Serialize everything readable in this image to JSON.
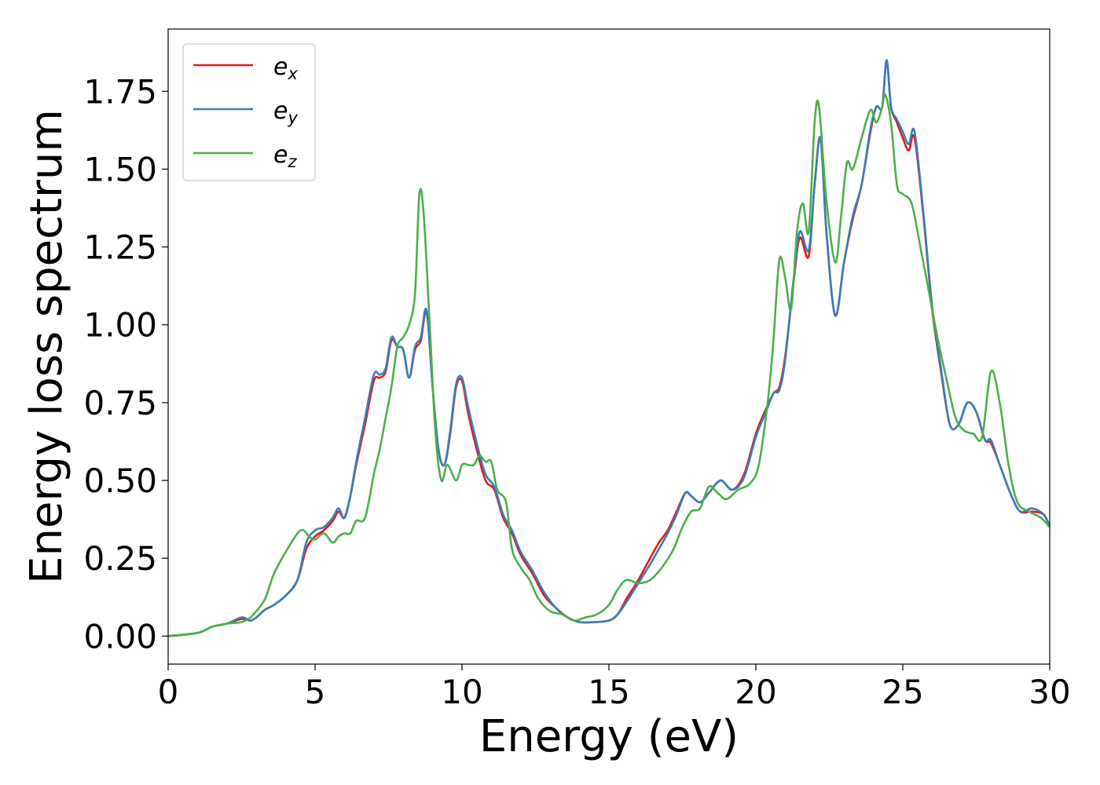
{
  "chart_data": {
    "type": "line",
    "title": "",
    "xlabel": "Energy (eV)",
    "ylabel": "Energy loss spectrum",
    "xlim": [
      0,
      30
    ],
    "ylim": [
      -0.09,
      1.95
    ],
    "x_ticks": [
      0,
      5,
      10,
      15,
      20,
      25,
      30
    ],
    "y_ticks": [
      0.0,
      0.25,
      0.5,
      0.75,
      1.0,
      1.25,
      1.5,
      1.75
    ],
    "y_tick_labels": [
      "0.00",
      "0.25",
      "0.50",
      "0.75",
      "1.00",
      "1.25",
      "1.50",
      "1.75"
    ],
    "x_tick_labels": [
      "0",
      "5",
      "10",
      "15",
      "20",
      "25",
      "30"
    ],
    "grid": false,
    "legend_position": "top-left",
    "series": [
      {
        "name": "e",
        "subscript": "x",
        "color": "#e41a1c",
        "x": [
          0,
          1,
          1.5,
          2,
          2.5,
          2.8,
          3,
          3.3,
          3.6,
          4,
          4.4,
          4.7,
          5,
          5.3,
          5.6,
          5.8,
          6,
          6.2,
          6.4,
          6.7,
          7,
          7.2,
          7.4,
          7.6,
          7.8,
          8.0,
          8.2,
          8.4,
          8.6,
          8.75,
          8.85,
          9.0,
          9.2,
          9.4,
          9.6,
          9.8,
          10.0,
          10.2,
          10.5,
          10.8,
          11.1,
          11.4,
          11.7,
          12.0,
          12.4,
          12.8,
          13.2,
          13.6,
          14.0,
          14.5,
          15.0,
          15.3,
          15.6,
          16,
          16.4,
          16.7,
          17,
          17.3,
          17.6,
          17.8,
          18.1,
          18.4,
          18.8,
          19.2,
          19.6,
          20.0,
          20.3,
          20.6,
          20.8,
          21.0,
          21.3,
          21.5,
          21.8,
          22.0,
          22.2,
          22.4,
          22.7,
          23.0,
          23.3,
          23.6,
          23.9,
          24.1,
          24.3,
          24.45,
          24.6,
          24.8,
          25.0,
          25.2,
          25.4,
          25.7,
          26.0,
          26.3,
          26.6,
          26.9,
          27.2,
          27.5,
          27.8,
          28.0,
          28.3,
          28.7,
          29.0,
          29.4,
          29.8,
          30
        ],
        "y": [
          0,
          0.01,
          0.03,
          0.04,
          0.055,
          0.05,
          0.06,
          0.085,
          0.1,
          0.13,
          0.18,
          0.28,
          0.32,
          0.34,
          0.37,
          0.4,
          0.38,
          0.45,
          0.55,
          0.68,
          0.82,
          0.83,
          0.85,
          0.95,
          0.93,
          0.92,
          0.83,
          0.92,
          0.95,
          1.04,
          1.0,
          0.8,
          0.6,
          0.55,
          0.65,
          0.8,
          0.82,
          0.72,
          0.6,
          0.5,
          0.47,
          0.38,
          0.33,
          0.26,
          0.2,
          0.13,
          0.09,
          0.06,
          0.045,
          0.045,
          0.05,
          0.07,
          0.12,
          0.18,
          0.25,
          0.3,
          0.34,
          0.4,
          0.46,
          0.45,
          0.43,
          0.46,
          0.5,
          0.47,
          0.52,
          0.65,
          0.72,
          0.78,
          0.8,
          0.9,
          1.15,
          1.28,
          1.22,
          1.45,
          1.6,
          1.3,
          1.03,
          1.2,
          1.34,
          1.45,
          1.62,
          1.7,
          1.7,
          1.85,
          1.7,
          1.65,
          1.6,
          1.56,
          1.6,
          1.35,
          1.05,
          0.85,
          0.68,
          0.68,
          0.75,
          0.72,
          0.63,
          0.62,
          0.55,
          0.45,
          0.4,
          0.4,
          0.39,
          0.35
        ]
      },
      {
        "name": "e",
        "subscript": "y",
        "color": "#377eb8",
        "x": [
          0,
          1,
          1.5,
          2,
          2.5,
          2.8,
          3,
          3.3,
          3.6,
          4,
          4.4,
          4.7,
          5,
          5.3,
          5.6,
          5.8,
          6,
          6.2,
          6.4,
          6.7,
          7,
          7.2,
          7.4,
          7.6,
          7.8,
          8.0,
          8.2,
          8.4,
          8.6,
          8.75,
          8.85,
          9.0,
          9.2,
          9.4,
          9.6,
          9.8,
          10.0,
          10.2,
          10.5,
          10.8,
          11.1,
          11.4,
          11.7,
          12.0,
          12.4,
          12.8,
          13.2,
          13.6,
          14.0,
          14.5,
          15.0,
          15.3,
          15.6,
          16,
          16.4,
          16.7,
          17,
          17.3,
          17.6,
          17.8,
          18.1,
          18.4,
          18.8,
          19.2,
          19.6,
          20.0,
          20.3,
          20.6,
          20.8,
          21.0,
          21.3,
          21.5,
          21.8,
          22.0,
          22.2,
          22.4,
          22.7,
          23.0,
          23.3,
          23.6,
          23.9,
          24.1,
          24.3,
          24.45,
          24.6,
          24.8,
          25.0,
          25.2,
          25.4,
          25.7,
          26.0,
          26.3,
          26.6,
          26.9,
          27.2,
          27.5,
          27.8,
          28.0,
          28.3,
          28.7,
          29.0,
          29.4,
          29.8,
          30
        ],
        "y": [
          0,
          0.01,
          0.03,
          0.04,
          0.06,
          0.05,
          0.06,
          0.085,
          0.1,
          0.13,
          0.18,
          0.3,
          0.34,
          0.35,
          0.38,
          0.41,
          0.38,
          0.45,
          0.56,
          0.7,
          0.84,
          0.84,
          0.86,
          0.96,
          0.93,
          0.92,
          0.83,
          0.93,
          0.96,
          1.05,
          1.0,
          0.8,
          0.6,
          0.55,
          0.66,
          0.81,
          0.83,
          0.74,
          0.62,
          0.52,
          0.48,
          0.39,
          0.34,
          0.27,
          0.21,
          0.14,
          0.09,
          0.06,
          0.045,
          0.045,
          0.05,
          0.07,
          0.11,
          0.17,
          0.23,
          0.28,
          0.33,
          0.39,
          0.46,
          0.45,
          0.43,
          0.46,
          0.5,
          0.47,
          0.51,
          0.64,
          0.71,
          0.78,
          0.79,
          0.89,
          1.16,
          1.3,
          1.24,
          1.45,
          1.6,
          1.3,
          1.03,
          1.2,
          1.35,
          1.45,
          1.63,
          1.7,
          1.7,
          1.85,
          1.7,
          1.66,
          1.62,
          1.58,
          1.62,
          1.36,
          1.06,
          0.86,
          0.68,
          0.68,
          0.75,
          0.72,
          0.63,
          0.63,
          0.55,
          0.45,
          0.4,
          0.41,
          0.39,
          0.35
        ]
      },
      {
        "name": "e",
        "subscript": "z",
        "color": "#4daf4a",
        "x": [
          0,
          1,
          1.5,
          2,
          2.5,
          2.8,
          3,
          3.3,
          3.6,
          4,
          4.4,
          4.6,
          4.8,
          5.0,
          5.3,
          5.6,
          5.8,
          6.0,
          6.2,
          6.4,
          6.7,
          7.0,
          7.2,
          7.4,
          7.6,
          7.8,
          8.0,
          8.2,
          8.4,
          8.55,
          8.7,
          8.9,
          9.1,
          9.3,
          9.5,
          9.8,
          10.0,
          10.2,
          10.4,
          10.6,
          10.8,
          11.0,
          11.2,
          11.5,
          11.7,
          12.0,
          12.3,
          12.6,
          13.0,
          13.4,
          13.8,
          14.2,
          14.6,
          15.0,
          15.3,
          15.6,
          16.0,
          16.4,
          16.8,
          17.2,
          17.5,
          17.8,
          18.1,
          18.4,
          18.7,
          19.0,
          19.4,
          19.8,
          20.1,
          20.4,
          20.6,
          20.8,
          21.0,
          21.2,
          21.4,
          21.6,
          21.8,
          22.0,
          22.15,
          22.4,
          22.7,
          22.9,
          23.1,
          23.3,
          23.6,
          23.9,
          24.1,
          24.3,
          24.4,
          24.6,
          24.8,
          25.0,
          25.3,
          25.6,
          25.9,
          26.2,
          26.5,
          26.8,
          27.1,
          27.4,
          27.7,
          28.0,
          28.3,
          28.6,
          28.9,
          29.3,
          29.7,
          30
        ],
        "y": [
          0,
          0.01,
          0.03,
          0.04,
          0.045,
          0.06,
          0.08,
          0.12,
          0.2,
          0.27,
          0.33,
          0.34,
          0.32,
          0.31,
          0.33,
          0.3,
          0.32,
          0.33,
          0.33,
          0.37,
          0.38,
          0.52,
          0.6,
          0.7,
          0.8,
          0.93,
          0.96,
          1.0,
          1.1,
          1.42,
          1.35,
          1.0,
          0.65,
          0.5,
          0.55,
          0.5,
          0.55,
          0.55,
          0.55,
          0.58,
          0.56,
          0.56,
          0.47,
          0.43,
          0.28,
          0.22,
          0.18,
          0.12,
          0.08,
          0.07,
          0.05,
          0.06,
          0.07,
          0.1,
          0.15,
          0.18,
          0.17,
          0.18,
          0.22,
          0.28,
          0.35,
          0.4,
          0.41,
          0.48,
          0.46,
          0.44,
          0.47,
          0.49,
          0.55,
          0.75,
          0.95,
          1.21,
          1.15,
          1.05,
          1.3,
          1.39,
          1.3,
          1.65,
          1.7,
          1.4,
          1.2,
          1.35,
          1.52,
          1.5,
          1.6,
          1.69,
          1.65,
          1.7,
          1.74,
          1.65,
          1.45,
          1.42,
          1.39,
          1.25,
          1.1,
          0.95,
          0.82,
          0.7,
          0.66,
          0.65,
          0.64,
          0.85,
          0.75,
          0.55,
          0.43,
          0.4,
          0.38,
          0.35
        ]
      }
    ]
  }
}
